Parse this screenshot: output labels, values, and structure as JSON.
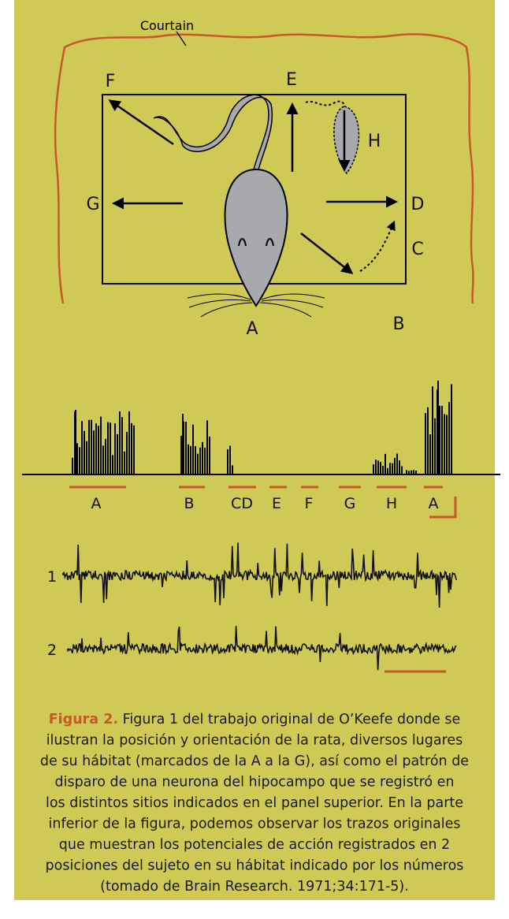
{
  "diagram": {
    "curtain_label": "Courtain",
    "locations": {
      "F": "F",
      "E": "E",
      "H": "H",
      "G": "G",
      "D": "D",
      "C": "C",
      "A": "A",
      "B": "B"
    },
    "histogram_labels": [
      "A",
      "B",
      "CD",
      "E",
      "F",
      "G",
      "H",
      "A"
    ],
    "trace_labels": [
      "1",
      "2"
    ]
  },
  "caption": {
    "label": "Figura 2.",
    "lines": [
      " Figura 1 del trabajo original de O’Keefe donde se",
      "ilustran la posición y orientación de la rata, diversos lugares",
      "de su hábitat (marcados de la A a la G), así como el patrón de",
      "disparo de una neurona del hipocampo que se registró en",
      "los distintos sitios indicados en el panel superior. En la parte",
      "inferior de la figura, podemos observar los trazos originales",
      "que muestran los potenciales de acción registrados en 2",
      "posiciones del sujeto en su hábitat indicado por los números",
      "(tomado de Brain Research. 1971;34:171-5)."
    ]
  }
}
